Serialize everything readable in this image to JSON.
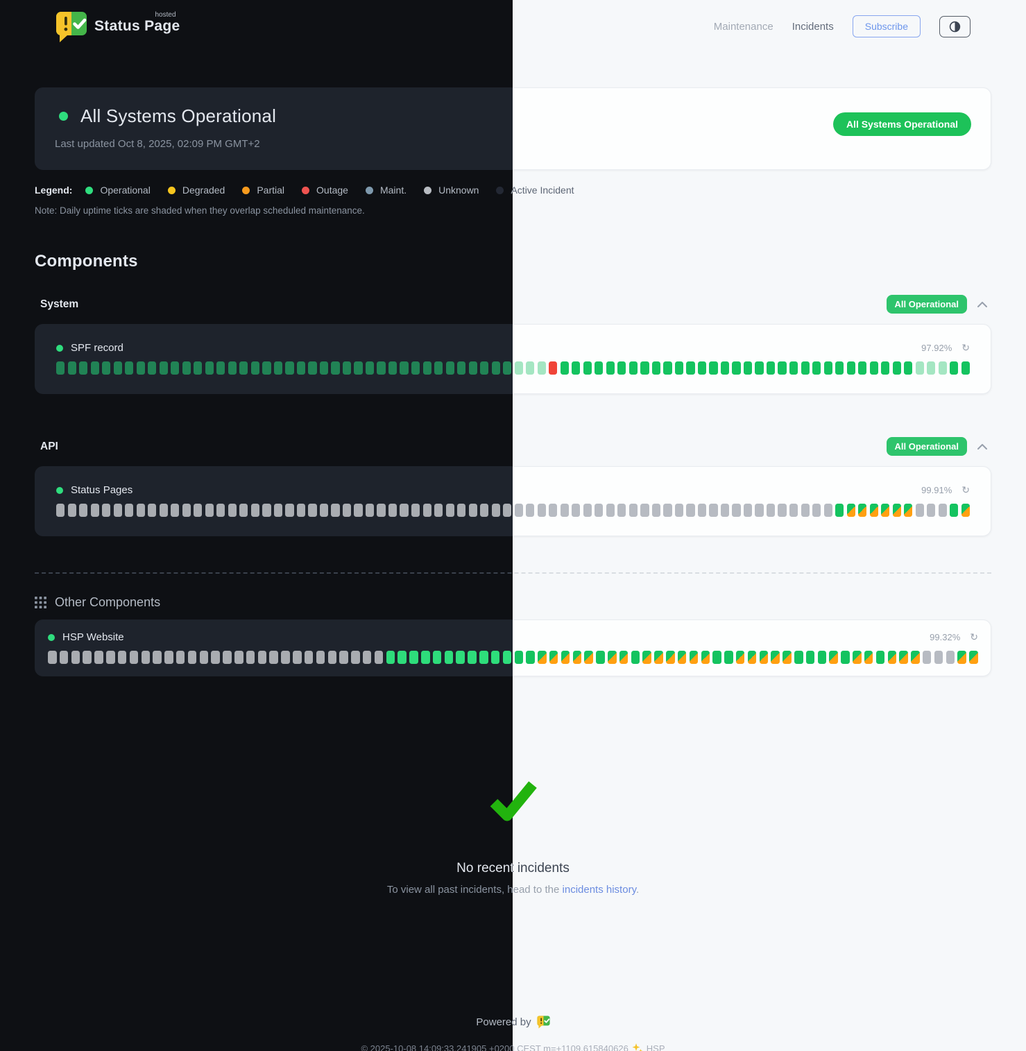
{
  "header": {
    "brand": "Status Page",
    "brand_sup": "hosted",
    "nav": [
      {
        "label": "Maintenance"
      },
      {
        "label": "Incidents"
      }
    ],
    "subscribe_label": "Subscribe",
    "theme_toggle_icon": "half-circle"
  },
  "banner": {
    "title": "All Systems Operational",
    "last_updated": "Last updated Oct 8, 2025, 02:09 PM GMT+2",
    "badge": "All Systems Operational"
  },
  "legend": {
    "label": "Legend:",
    "items": [
      {
        "label": "Operational",
        "color": "#2fdd7e"
      },
      {
        "label": "Degraded",
        "color": "#f7c51e"
      },
      {
        "label": "Partial",
        "color": "#f79b1e"
      },
      {
        "label": "Outage",
        "color": "#ef5350"
      },
      {
        "label": "Maint.",
        "color": "#7e99ad"
      },
      {
        "label": "Unknown",
        "color": "#b8bcc2"
      },
      {
        "label": "Active Incident",
        "color": "#232834"
      }
    ],
    "note": "Note: Daily uptime ticks are shaded when they overlap scheduled maintenance."
  },
  "components": {
    "heading": "Components",
    "tick_legend": {
      "G": "operational",
      "g": "operational-dim",
      "P": "operational-maintenance-shaded",
      "R": "outage",
      "U": "unknown",
      "S": "partial-operational-split"
    },
    "groups": [
      {
        "name": "System",
        "badge": "All Operational",
        "rows": [
          {
            "name": "SPF record",
            "uptime": "97.92%",
            "ticks": "ggggggggggggggggggggggggggggggggggggggggPPPRGGGGGGGGGGGGGGGGGGGGGGGGGGGGGGGPPPGG"
          }
        ]
      },
      {
        "name": "API",
        "badge": "All Operational",
        "rows": [
          {
            "name": "Status Pages",
            "uptime": "99.91%",
            "ticks": "UUUUUUUUUUUUUUUUUUUUUUUUUUUUUUUUUUUUUUUUUUUUUUUUUUUUUUUUUUUUUUUUUUUUGSSSSSSUUUGS"
          }
        ]
      }
    ],
    "other": {
      "heading": "Other Components",
      "rows": [
        {
          "name": "HSP Website",
          "uptime": "99.32%",
          "ticks": "UUUUUUUUUUUUUUUUUUUUUUUUUUUUUGGGGGGGGGGGGGSSSSSGSSGSSSSSSGGSSSSSGGGSGSSGSSSUUUSS"
        }
      ]
    }
  },
  "incidents": {
    "title": "No recent incidents",
    "subtitle_prefix": "To view all past incidents, head to the ",
    "link": "incidents history",
    "subtitle_suffix": "."
  },
  "footer": {
    "powered_by": "Powered by",
    "copyright_text": "© 2025-10-08 14:09:33.241905 +0200 CEST m=+1109.615840626",
    "sparkle": "✨",
    "copyright_suffix": "HSP"
  },
  "colors": {
    "accent_green": "#1dc259",
    "group_badge_green": "#2ec46c",
    "tick_green": "#14c35f",
    "tick_orange": "#ffa011",
    "tick_red": "#f04438",
    "tick_gray": "#b7bbc2",
    "tick_pale_green": "#a4e6c2",
    "link_blue": "#6b8ce0",
    "subscribe_blue": "#6d96ec",
    "logo_yellow": "#f5c32a",
    "logo_green": "#44b549",
    "check_green": "#22b30e"
  }
}
